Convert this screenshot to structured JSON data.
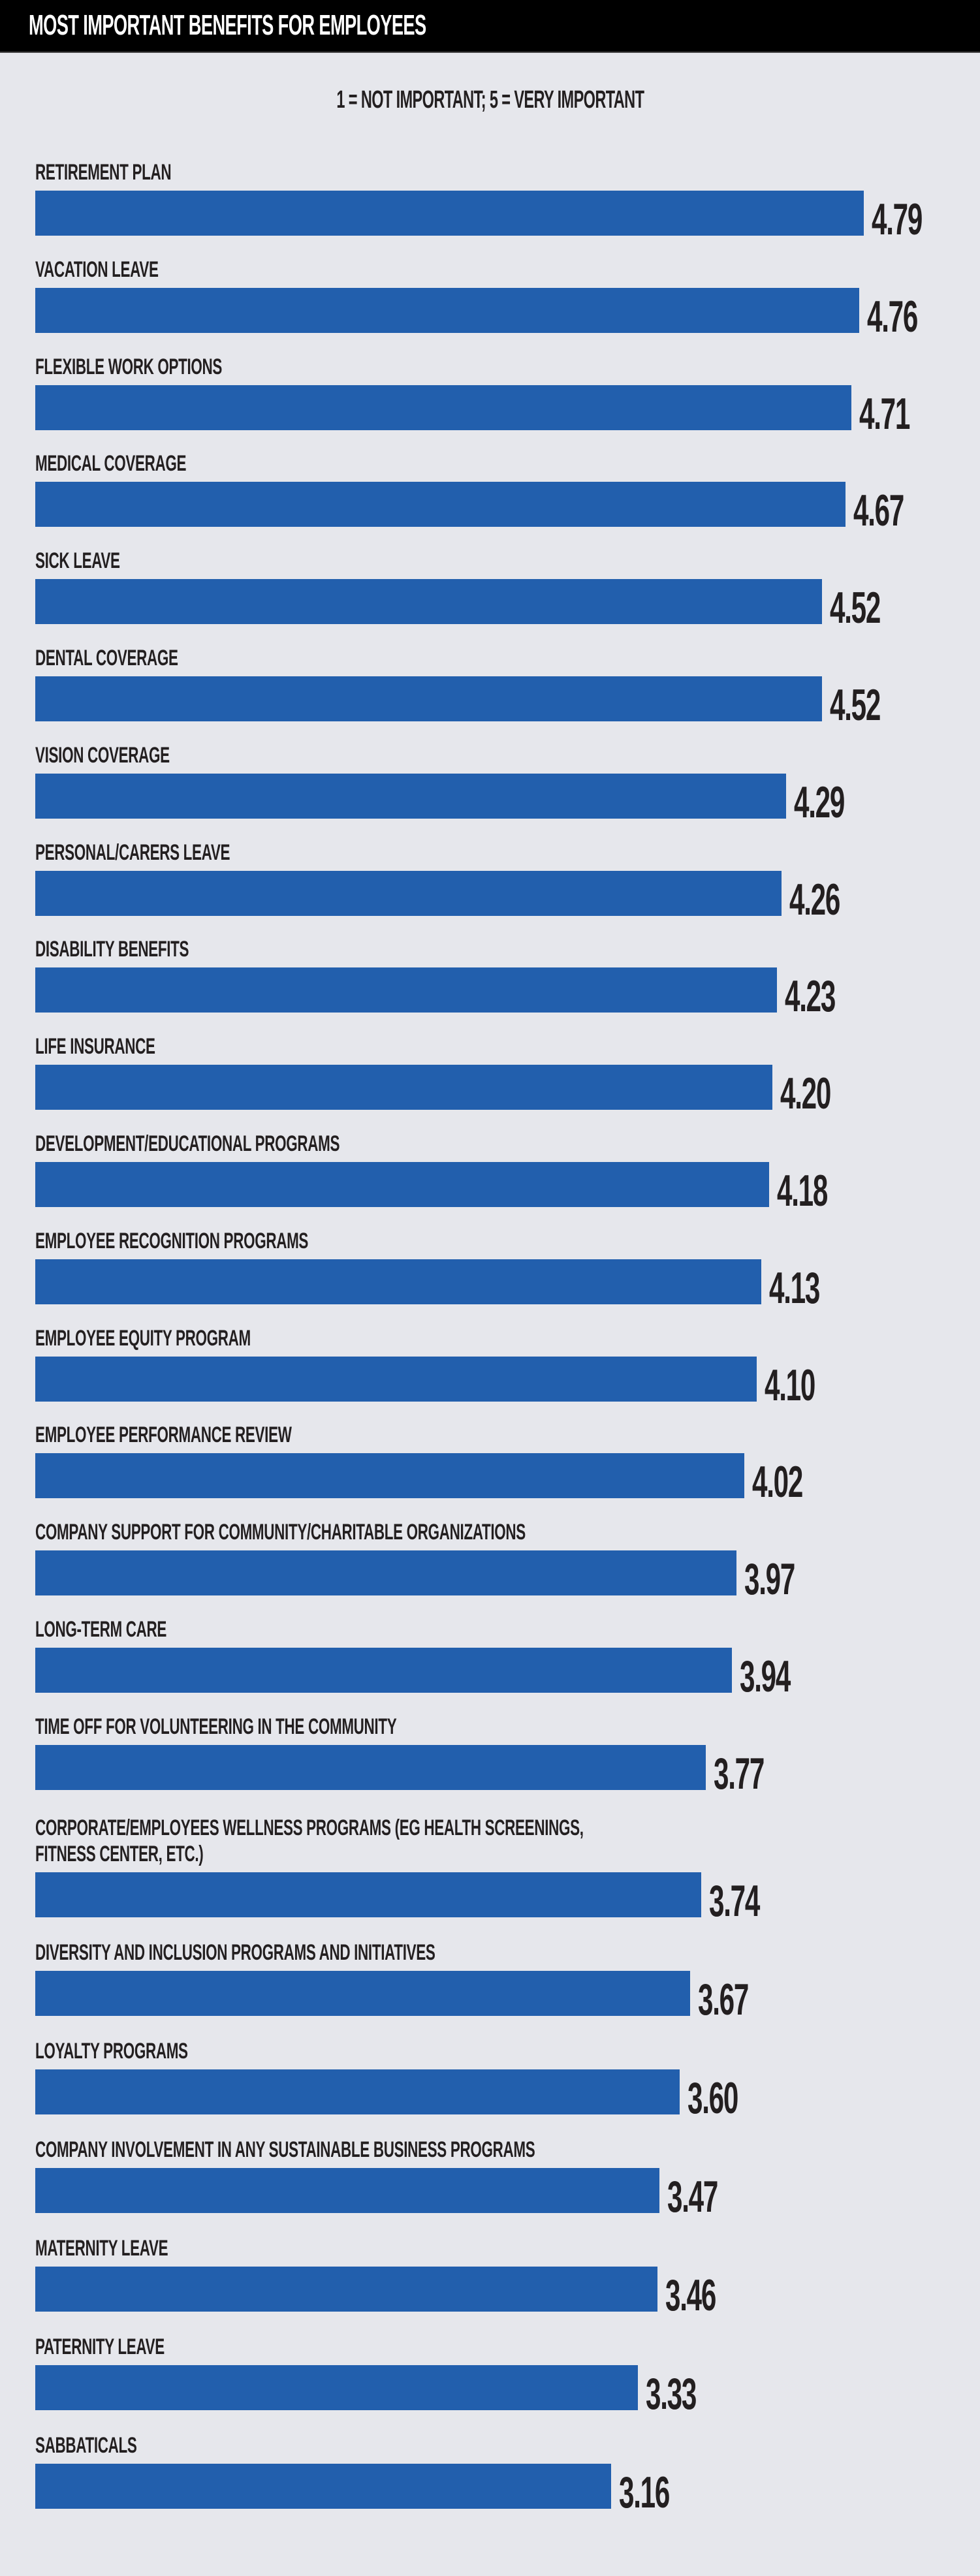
{
  "chart_data": {
    "type": "bar",
    "orientation": "horizontal",
    "title": "MOST IMPORTANT BENEFITS FOR EMPLOYEES",
    "subtitle": "1 = NOT IMPORTANT; 5 = VERY IMPORTANT",
    "categories": [
      "RETIREMENT PLAN",
      "VACATION LEAVE",
      "FLEXIBLE WORK OPTIONS",
      "MEDICAL COVERAGE",
      "SICK LEAVE",
      "DENTAL COVERAGE",
      "VISION COVERAGE",
      "PERSONAL/CARERS LEAVE",
      "DISABILITY BENEFITS",
      "LIFE INSURANCE",
      "DEVELOPMENT/EDUCATIONAL PROGRAMS",
      "EMPLOYEE RECOGNITION PROGRAMS",
      "EMPLOYEE EQUITY PROGRAM",
      "EMPLOYEE PERFORMANCE REVIEW",
      "COMPANY SUPPORT FOR COMMUNITY/CHARITABLE ORGANIZATIONS",
      "LONG-TERM CARE",
      "TIME OFF FOR VOLUNTEERING IN THE COMMUNITY",
      "CORPORATE/EMPLOYEES WELLNESS PROGRAMS (EG HEALTH SCREENINGS,\nFITNESS CENTER, ETC.)",
      "DIVERSITY AND INCLUSION PROGRAMS AND INITIATIVES",
      "LOYALTY PROGRAMS",
      "COMPANY INVOLVEMENT IN ANY SUSTAINABLE BUSINESS PROGRAMS",
      "MATERNITY LEAVE",
      "PATERNITY LEAVE",
      "SABBATICALS"
    ],
    "values": [
      4.79,
      4.76,
      4.71,
      4.67,
      4.52,
      4.52,
      4.29,
      4.26,
      4.23,
      4.2,
      4.18,
      4.13,
      4.1,
      4.02,
      3.97,
      3.94,
      3.77,
      3.74,
      3.67,
      3.6,
      3.47,
      3.46,
      3.33,
      3.16
    ],
    "value_labels": [
      "4.79",
      "4.76",
      "4.71",
      "4.67",
      "4.52",
      "4.52",
      "4.29",
      "4.26",
      "4.23",
      "4.20",
      "4.18",
      "4.13",
      "4.10",
      "4.02",
      "3.97",
      "3.94",
      "3.77",
      "3.74",
      "3.67",
      "3.60",
      "3.47",
      "3.46",
      "3.33",
      "3.16"
    ],
    "scale": [
      1,
      5
    ],
    "grid": false,
    "legend": "none",
    "colors": {
      "bar": "#225fad",
      "background": "#e6e7ec",
      "header": "#000000",
      "text": "#231f20"
    }
  }
}
